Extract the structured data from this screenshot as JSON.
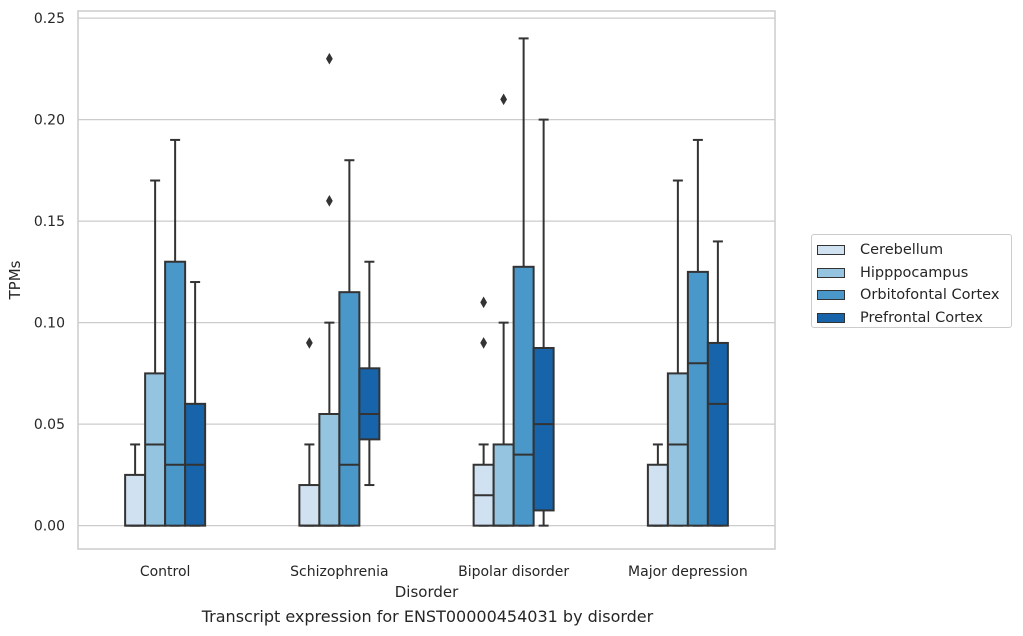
{
  "chart_data": {
    "type": "boxplot",
    "title": "Transcript expression for ENST00000454031 by disorder",
    "xlabel": "Disorder",
    "ylabel": "TPMs",
    "ylim": [
      -0.0115,
      0.2535
    ],
    "yticks": [
      0.0,
      0.05,
      0.1,
      0.15,
      0.2,
      0.25
    ],
    "ytick_labels": [
      "0.00",
      "0.05",
      "0.10",
      "0.15",
      "0.20",
      "0.25"
    ],
    "categories": [
      "Control",
      "Schizophrenia",
      "Bipolar disorder",
      "Major depression"
    ],
    "grid": true,
    "legend_position": "right",
    "series": [
      {
        "name": "Cerebellum",
        "color": "#d0e1f2",
        "boxes": [
          {
            "whislo": 0.0,
            "q1": 0.0,
            "med": 0.0,
            "q3": 0.025,
            "whishi": 0.04,
            "fliers": []
          },
          {
            "whislo": 0.0,
            "q1": 0.0,
            "med": 0.0,
            "q3": 0.02,
            "whishi": 0.04,
            "fliers": [
              0.09
            ]
          },
          {
            "whislo": 0.0,
            "q1": 0.0,
            "med": 0.015,
            "q3": 0.03,
            "whishi": 0.04,
            "fliers": [
              0.09,
              0.11
            ]
          },
          {
            "whislo": 0.0,
            "q1": 0.0,
            "med": 0.0,
            "q3": 0.03,
            "whishi": 0.04,
            "fliers": []
          }
        ]
      },
      {
        "name": "Hipppocampus",
        "color": "#94c4df",
        "boxes": [
          {
            "whislo": 0.0,
            "q1": 0.0,
            "med": 0.04,
            "q3": 0.075,
            "whishi": 0.17,
            "fliers": []
          },
          {
            "whislo": 0.0,
            "q1": 0.0,
            "med": 0.0,
            "q3": 0.055,
            "whishi": 0.1,
            "fliers": [
              0.16,
              0.23
            ]
          },
          {
            "whislo": 0.0,
            "q1": 0.0,
            "med": 0.0,
            "q3": 0.04,
            "whishi": 0.1,
            "fliers": [
              0.21
            ]
          },
          {
            "whislo": 0.0,
            "q1": 0.0,
            "med": 0.04,
            "q3": 0.075,
            "whishi": 0.17,
            "fliers": []
          }
        ]
      },
      {
        "name": "Orbitofontal Cortex",
        "color": "#4a98c9",
        "boxes": [
          {
            "whislo": 0.0,
            "q1": 0.0,
            "med": 0.03,
            "q3": 0.13,
            "whishi": 0.19,
            "fliers": []
          },
          {
            "whislo": 0.0,
            "q1": 0.0,
            "med": 0.03,
            "q3": 0.115,
            "whishi": 0.18,
            "fliers": []
          },
          {
            "whislo": 0.0,
            "q1": 0.0,
            "med": 0.035,
            "q3": 0.1275,
            "whishi": 0.24,
            "fliers": []
          },
          {
            "whislo": 0.0,
            "q1": 0.0,
            "med": 0.08,
            "q3": 0.125,
            "whishi": 0.19,
            "fliers": []
          }
        ]
      },
      {
        "name": "Prefrontal Cortex",
        "color": "#1764ab",
        "boxes": [
          {
            "whislo": 0.0,
            "q1": 0.0,
            "med": 0.03,
            "q3": 0.06,
            "whishi": 0.12,
            "fliers": []
          },
          {
            "whislo": 0.02,
            "q1": 0.0425,
            "med": 0.055,
            "q3": 0.0775,
            "whishi": 0.13,
            "fliers": []
          },
          {
            "whislo": 0.0,
            "q1": 0.0075,
            "med": 0.05,
            "q3": 0.0875,
            "whishi": 0.2,
            "fliers": []
          },
          {
            "whislo": 0.0,
            "q1": 0.0,
            "med": 0.06,
            "q3": 0.09,
            "whishi": 0.14,
            "fliers": []
          }
        ]
      }
    ]
  }
}
